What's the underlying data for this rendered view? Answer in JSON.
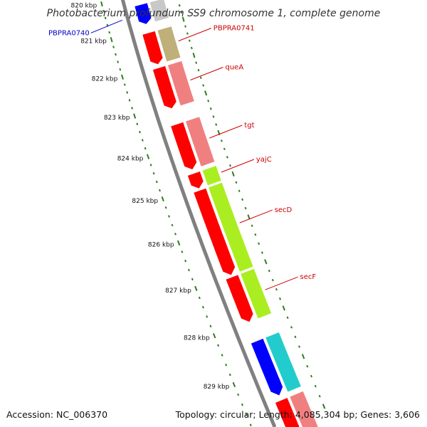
{
  "title": "Photobacterium profundum SS9 chromosome 1, complete genome",
  "footer": {
    "accession": "Accession: NC_006370",
    "summary": "Topology: circular; Length: 4,085,304 bp; Genes: 3,606"
  },
  "colors": {
    "backbone": "#808080",
    "tick": "#2e7d1e",
    "label_red": "#cc0000",
    "label_blue": "#0000cc"
  },
  "scale": {
    "unit": "kbp",
    "ticks": [
      {
        "kbp": 820,
        "label": "820 kbp"
      },
      {
        "kbp": 821,
        "label": "821 kbp"
      },
      {
        "kbp": 822,
        "label": "822 kbp"
      },
      {
        "kbp": 823,
        "label": "823 kbp"
      },
      {
        "kbp": 824,
        "label": "824 kbp"
      },
      {
        "kbp": 825,
        "label": "825 kbp"
      },
      {
        "kbp": 826,
        "label": "826 kbp"
      },
      {
        "kbp": 827,
        "label": "827 kbp"
      },
      {
        "kbp": 828,
        "label": "828 kbp"
      },
      {
        "kbp": 829,
        "label": "829 kbp"
      }
    ]
  },
  "genes": [
    {
      "name": "PBPRA0740",
      "start_kbp": 820.3,
      "end_kbp": 820.85,
      "cds_color": "#0000ff",
      "feature_color": "#c8c8c8",
      "label_color": "#0000cc",
      "label_side": "left"
    },
    {
      "name": "PBPRA0741",
      "start_kbp": 821.1,
      "end_kbp": 821.95,
      "cds_color": "#ff0000",
      "feature_color": "#bfb07a",
      "label_color": "#cc0000",
      "label_side": "right"
    },
    {
      "name": "queA",
      "start_kbp": 822.05,
      "end_kbp": 823.1,
      "cds_color": "#ff0000",
      "feature_color": "#f08080",
      "label_color": "#cc0000",
      "label_side": "right"
    },
    {
      "name": "tgt",
      "start_kbp": 823.5,
      "end_kbp": 824.6,
      "cds_color": "#ff0000",
      "feature_color": "#f08080",
      "label_color": "#cc0000",
      "label_side": "right"
    },
    {
      "name": "yajC",
      "start_kbp": 824.7,
      "end_kbp": 825.05,
      "cds_color": "#ff0000",
      "feature_color": "#aaee22",
      "label_color": "#cc0000",
      "label_side": "right"
    },
    {
      "name": "secD",
      "start_kbp": 825.1,
      "end_kbp": 827.0,
      "cds_color": "#ff0000",
      "feature_color": "#aaee22",
      "label_color": "#cc0000",
      "label_side": "right"
    },
    {
      "name": "secF",
      "start_kbp": 827.05,
      "end_kbp": 828.0,
      "cds_color": "#ff0000",
      "feature_color": "#aaee22",
      "label_color": "#cc0000",
      "label_side": "right"
    },
    {
      "name": "",
      "start_kbp": 828.4,
      "end_kbp": 829.5,
      "cds_color": "#0000ff",
      "feature_color": "#22cccc",
      "label_color": "#cc0000",
      "label_side": "none"
    },
    {
      "name": "",
      "start_kbp": 829.6,
      "end_kbp": 830.3,
      "cds_color": "#ff0000",
      "feature_color": "#f08080",
      "label_color": "#cc0000",
      "label_side": "none"
    }
  ]
}
